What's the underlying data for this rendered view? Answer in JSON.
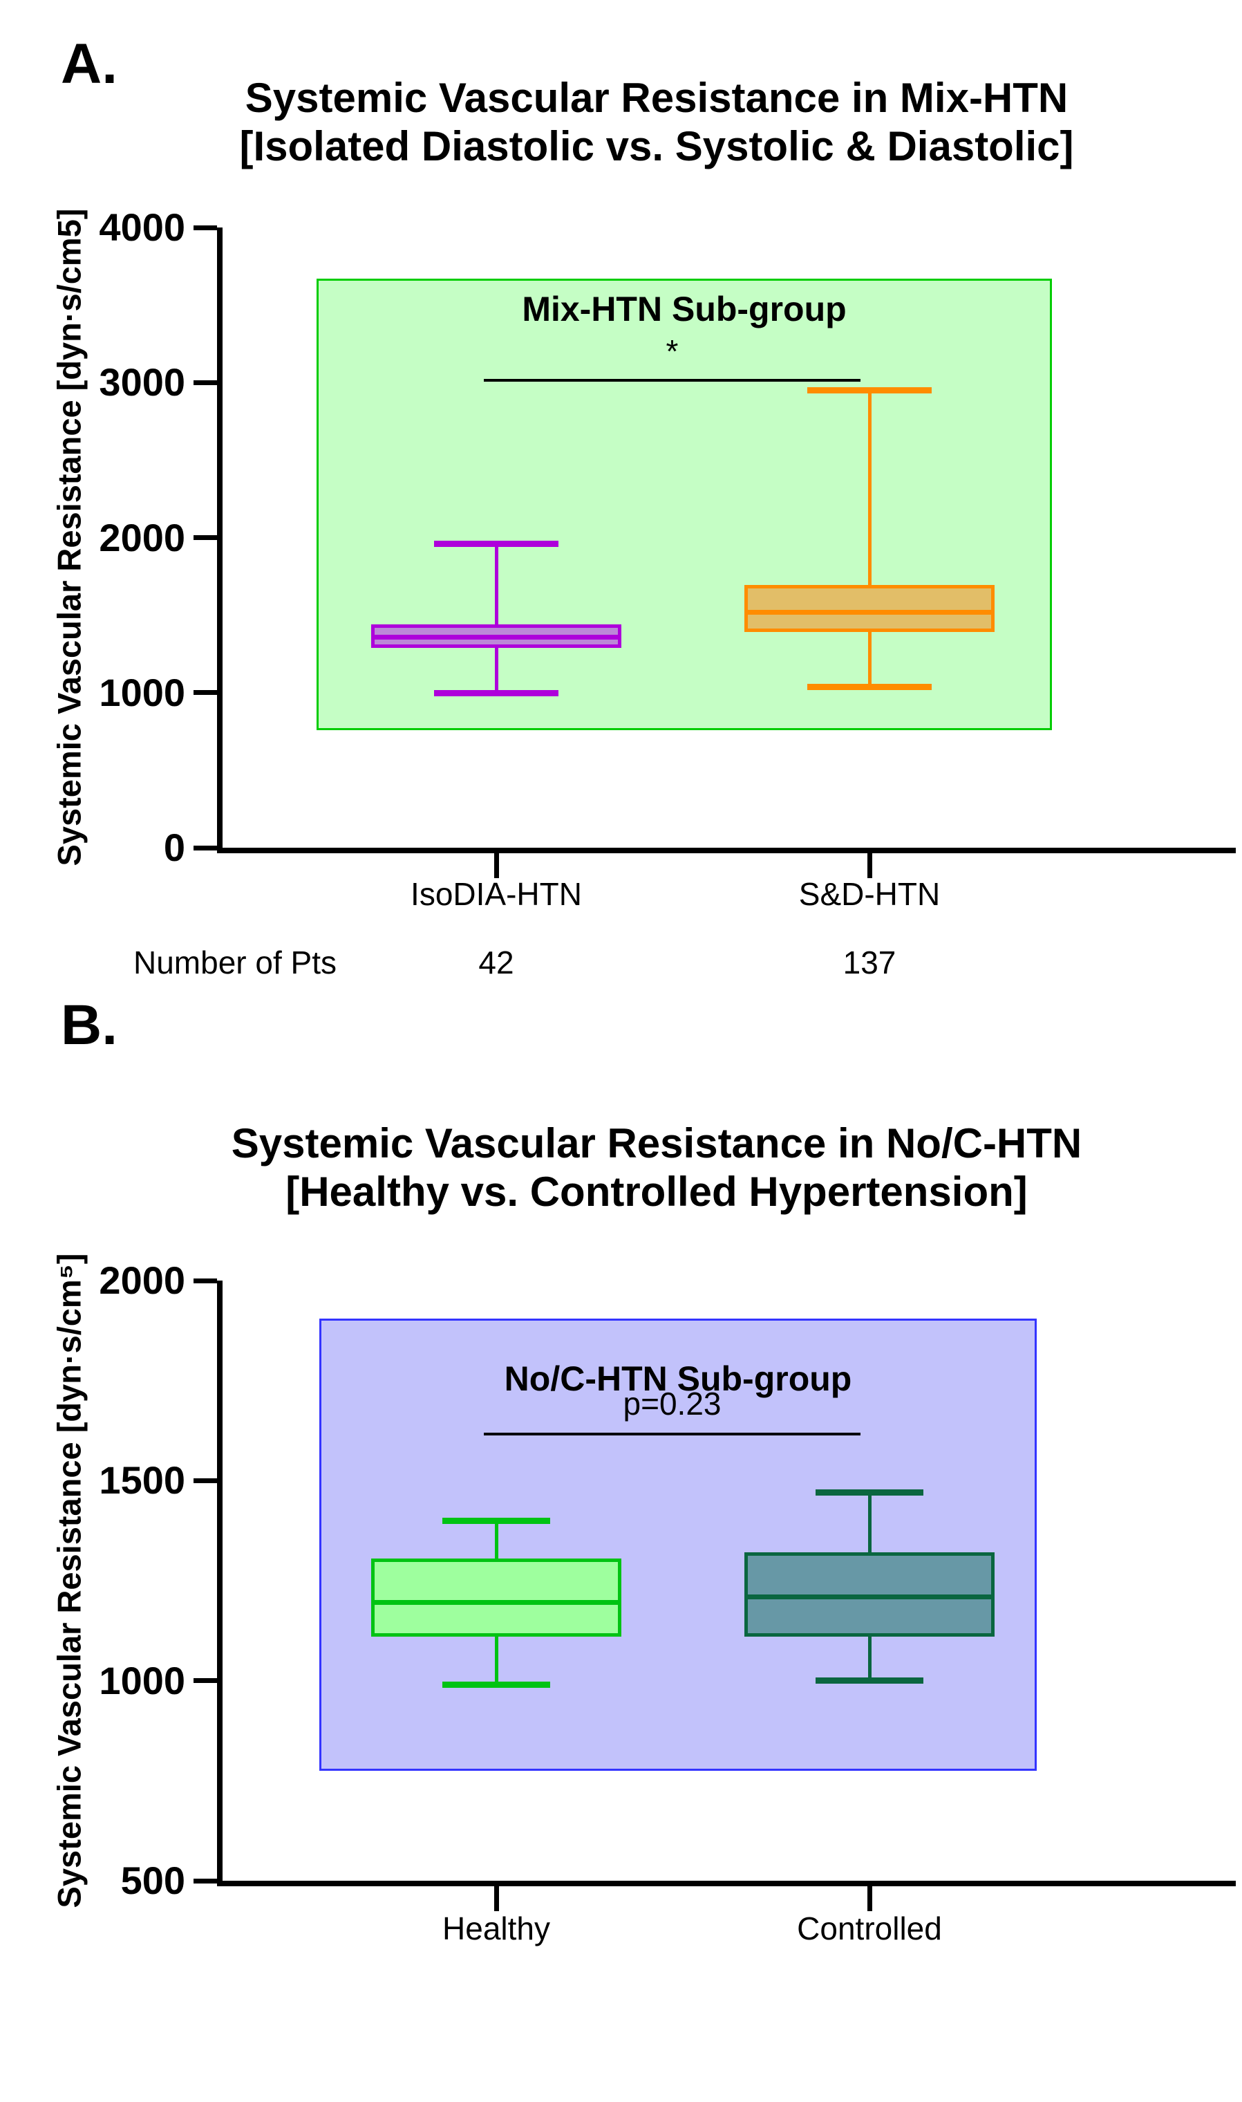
{
  "page": {
    "panel_a_label": "A.",
    "panel_b_label": "B."
  },
  "chart_data": [
    {
      "type": "box",
      "panel": "A",
      "title_lines": [
        "Systemic Vascular Resistance in Mix-HTN",
        "[Isolated Diastolic vs. Systolic & Diastolic]"
      ],
      "ylabel": "Systemic Vascular Resistance [dyn·s/cm5]",
      "ylim": [
        0,
        4000
      ],
      "yticks": [
        0,
        1000,
        2000,
        3000,
        4000
      ],
      "band": {
        "top_value": 3670,
        "bottom_value": 760,
        "fill": "#c5fec5",
        "border": "#00cd00"
      },
      "inner_title": "Mix-HTN Sub-group",
      "sig": {
        "label": "*",
        "line_value": 3025
      },
      "footer_label": "Number of Pts",
      "groups": [
        {
          "label": "IsoDIA-HTN",
          "n": "42",
          "min": 995,
          "q1": 1290,
          "median": 1360,
          "q3": 1440,
          "max": 1960,
          "stroke": "#ae00db",
          "fill": "#bc87d8"
        },
        {
          "label": "S&D-HTN",
          "n": "137",
          "min": 1035,
          "q1": 1390,
          "median": 1520,
          "q3": 1695,
          "max": 2950,
          "stroke": "#ff8c00",
          "fill": "#e2be68"
        }
      ]
    },
    {
      "type": "box",
      "panel": "B",
      "title_lines": [
        "Systemic Vascular Resistance in No/C-HTN",
        "[Healthy vs. Controlled Hypertension]"
      ],
      "ylabel": "Systemic Vascular Resistance [dyn·s/cm⁵]",
      "ylim": [
        500,
        2000
      ],
      "yticks": [
        500,
        1000,
        1500,
        2000
      ],
      "band": {
        "top_value": 1905,
        "bottom_value": 775,
        "fill": "#c2c2fb",
        "border": "#3434ff"
      },
      "inner_title": "No/C-HTN Sub-group",
      "sig": {
        "label": "p=0.23",
        "line_value": 1620
      },
      "groups": [
        {
          "label": "Healthy",
          "min": 990,
          "q1": 1110,
          "median": 1195,
          "q3": 1305,
          "max": 1400,
          "stroke": "#00c313",
          "fill": "#9eff9e"
        },
        {
          "label": "Controlled",
          "min": 1000,
          "q1": 1110,
          "median": 1210,
          "q3": 1320,
          "max": 1470,
          "stroke": "#0a6640",
          "fill": "#6798a6"
        }
      ]
    }
  ]
}
